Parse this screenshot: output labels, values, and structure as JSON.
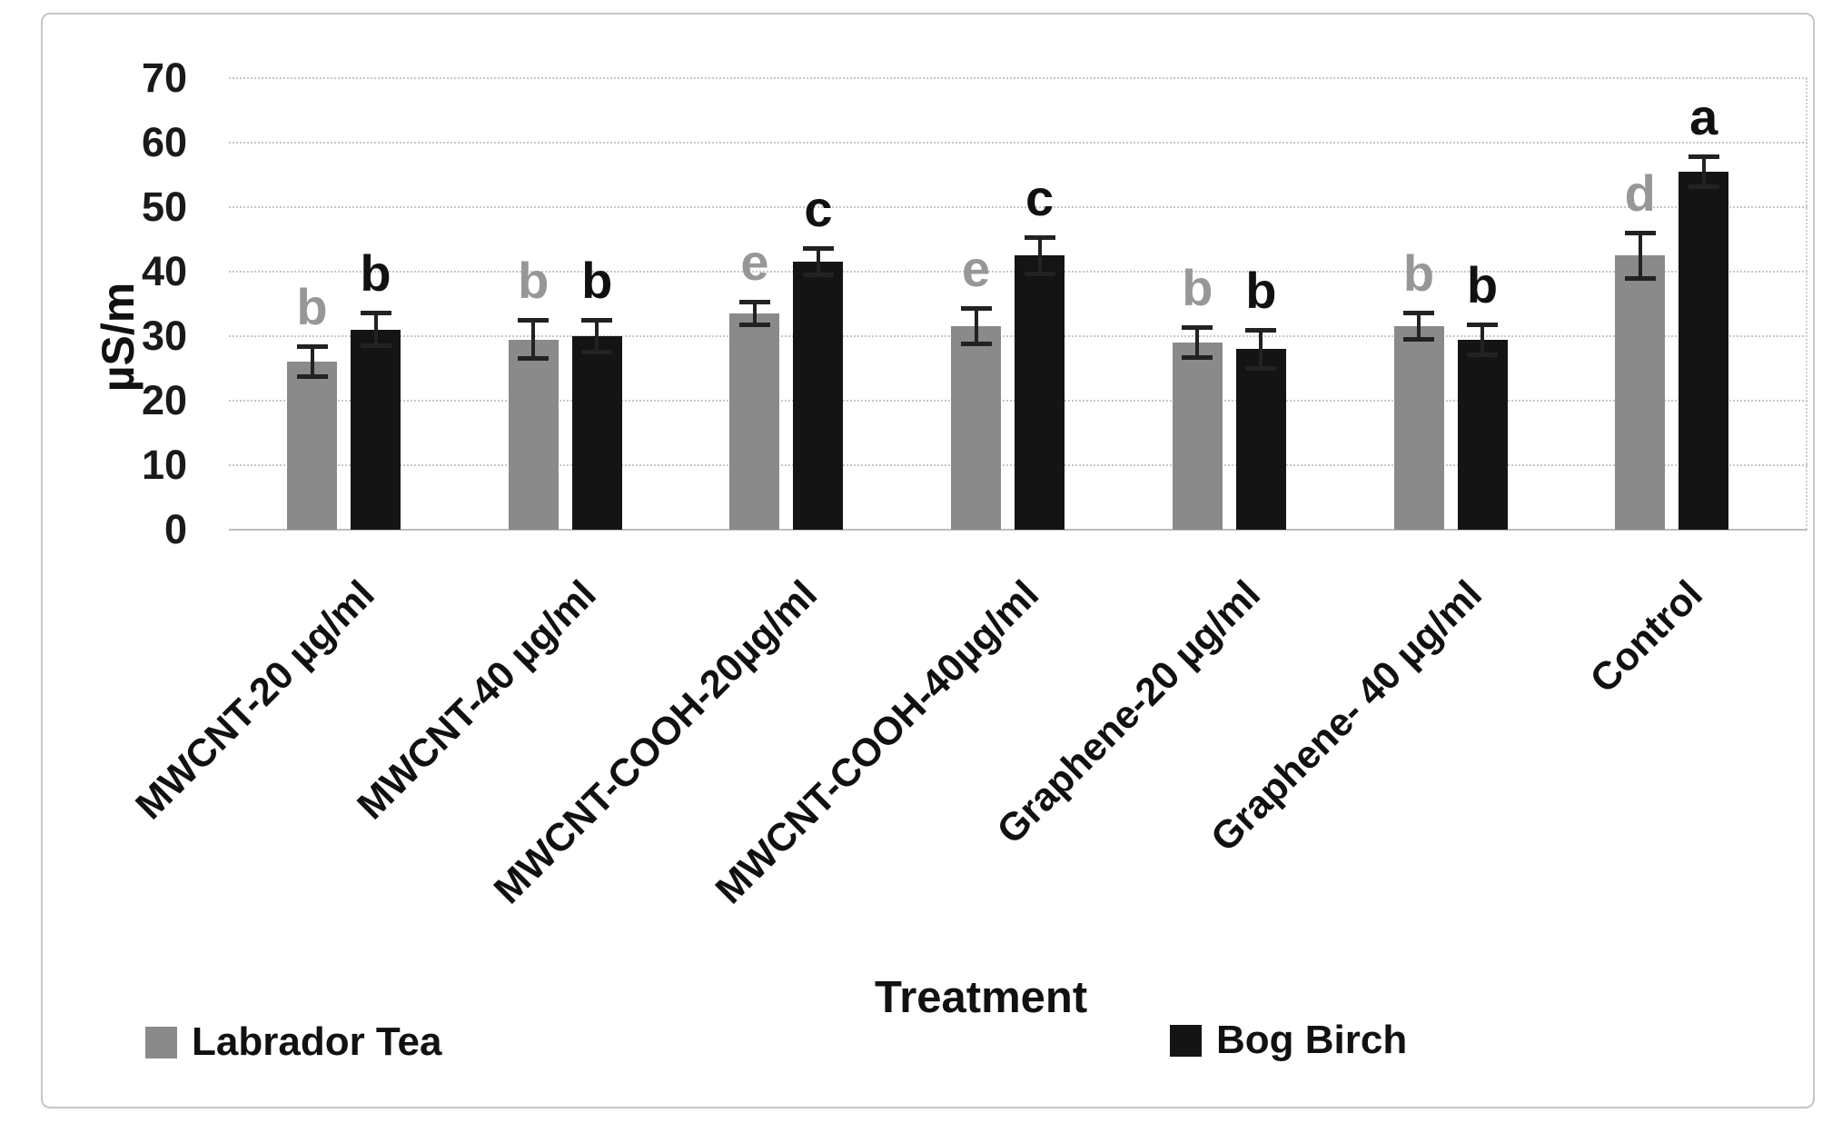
{
  "chart_data": {
    "type": "bar",
    "title": "",
    "ylabel": "µS/m",
    "xlabel": "Treatment",
    "ylim": [
      0,
      70
    ],
    "ytick_step": 10,
    "grid": true,
    "legend_position": "bottom",
    "categories": [
      "MWCNT-20 µg/ml",
      "MWCNT-40 µg/ml",
      "MWCNT-COOH-20µg/ml",
      "MWCNT-COOH-40µg/ml",
      "Graphene-20 µg/ml",
      "Graphene- 40 µg/ml",
      "Control"
    ],
    "series": [
      {
        "name": "Labrador Tea",
        "color": "#8a8a8a",
        "letter_color": "#979797",
        "values": [
          26,
          29.5,
          33.5,
          31.5,
          29,
          31.5,
          42.5
        ],
        "errors": [
          2.4,
          3.0,
          1.8,
          2.8,
          2.4,
          2.1,
          3.6
        ],
        "letters": [
          "b",
          "b",
          "e",
          "e",
          "b",
          "b",
          "d"
        ]
      },
      {
        "name": "Bog Birch",
        "color": "#141414",
        "letter_color": "#111111",
        "values": [
          31,
          30,
          41.5,
          42.5,
          28,
          29.5,
          55.5
        ],
        "errors": [
          2.6,
          2.6,
          2.1,
          2.9,
          3.0,
          2.4,
          2.4
        ],
        "letters": [
          "b",
          "b",
          "c",
          "c",
          "b",
          "b",
          "a"
        ]
      }
    ],
    "yticks": [
      0,
      10,
      20,
      30,
      40,
      50,
      60,
      70
    ]
  }
}
